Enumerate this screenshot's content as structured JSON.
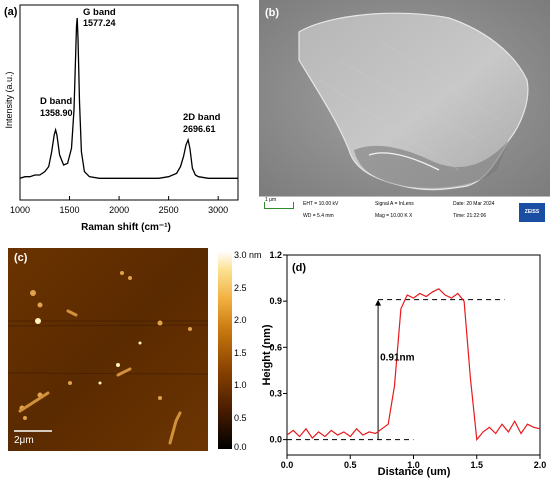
{
  "chart_data": [
    {
      "panel": "(a)",
      "type": "line",
      "xlabel": "Raman shift (cm⁻¹)",
      "ylabel": "Intensity (a.u.)",
      "xlim": [
        1000,
        3200
      ],
      "xticks": [
        "1000",
        "1500",
        "2000",
        "2500",
        "3000"
      ],
      "x": [
        1000,
        1050,
        1100,
        1150,
        1200,
        1250,
        1290,
        1320,
        1345,
        1358.9,
        1372,
        1400,
        1440,
        1480,
        1520,
        1545,
        1560,
        1570,
        1577.24,
        1585,
        1600,
        1620,
        1650,
        1700,
        1800,
        1900,
        2000,
        2100,
        2200,
        2300,
        2400,
        2500,
        2580,
        2620,
        2650,
        2675,
        2696.61,
        2715,
        2740,
        2770,
        2800,
        2900,
        3000,
        3100,
        3200
      ],
      "y": [
        0.04,
        0.05,
        0.05,
        0.06,
        0.06,
        0.08,
        0.11,
        0.2,
        0.3,
        0.33,
        0.3,
        0.18,
        0.12,
        0.13,
        0.22,
        0.45,
        0.75,
        0.95,
        1.0,
        0.88,
        0.5,
        0.2,
        0.08,
        0.05,
        0.04,
        0.04,
        0.04,
        0.04,
        0.04,
        0.04,
        0.04,
        0.05,
        0.07,
        0.11,
        0.17,
        0.24,
        0.27,
        0.22,
        0.1,
        0.06,
        0.05,
        0.04,
        0.04,
        0.04,
        0.04
      ],
      "annotations": [
        {
          "name": "D band",
          "value": "1358.90"
        },
        {
          "name": "G band",
          "value": "1577.24"
        },
        {
          "name": "2D band",
          "value": "2696.61"
        }
      ]
    },
    {
      "panel": "(d)",
      "type": "line",
      "xlabel": "Distance (um)",
      "ylabel": "Height (nm)",
      "xlim": [
        0,
        2.0
      ],
      "ylim": [
        -0.1,
        1.2
      ],
      "xticks": [
        "0.0",
        "0.5",
        "1.0",
        "1.5",
        "2.0"
      ],
      "yticks": [
        "0.0",
        "0.3",
        "0.6",
        "0.9",
        "1.2"
      ],
      "color": "#e8191c",
      "x": [
        0,
        0.05,
        0.1,
        0.15,
        0.2,
        0.25,
        0.3,
        0.35,
        0.4,
        0.45,
        0.5,
        0.55,
        0.6,
        0.65,
        0.7,
        0.75,
        0.8,
        0.85,
        0.9,
        0.95,
        1.0,
        1.05,
        1.1,
        1.15,
        1.2,
        1.25,
        1.3,
        1.35,
        1.4,
        1.45,
        1.5,
        1.55,
        1.6,
        1.65,
        1.7,
        1.75,
        1.8,
        1.85,
        1.9,
        1.95,
        2.0
      ],
      "y": [
        0.03,
        0.06,
        0.02,
        0.07,
        0.01,
        0.05,
        0.02,
        0.06,
        0.03,
        0.05,
        0.02,
        0.07,
        0.03,
        0.05,
        0.04,
        0.07,
        0.1,
        0.35,
        0.85,
        0.94,
        0.92,
        0.95,
        0.93,
        0.96,
        0.98,
        0.94,
        0.92,
        0.95,
        0.9,
        0.4,
        0.0,
        0.05,
        0.08,
        0.04,
        0.1,
        0.05,
        0.12,
        0.04,
        0.1,
        0.08,
        0.07
      ],
      "reference_lines": [
        0.0,
        0.91
      ],
      "annotation": "0.91nm"
    }
  ],
  "panel_labels": {
    "a": "(a)",
    "b": "(b)",
    "c": "(c)",
    "d": "(d)"
  },
  "sem": {
    "scale": "1 μm",
    "eht": "EHT = 10.00 kV",
    "wd": "WD =  5.4 mm",
    "signal": "Signal A = InLens",
    "mag": "Mag =  10.00 K X",
    "date": "Date: 20 Mar 2024",
    "time": "Time: 21:22:06",
    "logo": "ZEISS"
  },
  "afm": {
    "scalebar": "2μm",
    "colorbar_ticks": [
      "3.0 nm",
      "2.5",
      "2.0",
      "1.5",
      "1.0",
      "0.5",
      "0.0"
    ],
    "colorbar_colors": [
      "#000000",
      "#4a1d00",
      "#8a4300",
      "#c8780f",
      "#f0ad3e",
      "#fbe08e",
      "#ffffff"
    ]
  }
}
